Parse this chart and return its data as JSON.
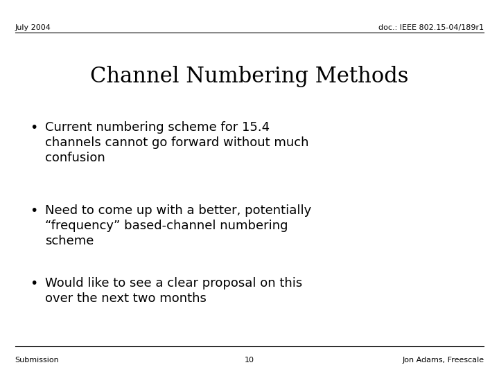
{
  "background_color": "#ffffff",
  "top_left_text": "July 2004",
  "top_right_text": "doc.: IEEE 802.15-04/189r1",
  "title": "Channel Numbering Methods",
  "bullets": [
    "Current numbering scheme for 15.4\nchannels cannot go forward without much\nconfusion",
    "Need to come up with a better, potentially\n“frequency” based-channel numbering\nscheme",
    "Would like to see a clear proposal on this\nover the next two months"
  ],
  "bottom_left_text": "Submission",
  "bottom_center_text": "10",
  "bottom_right_text": "Jon Adams, Freescale",
  "title_fontsize": 22,
  "header_fontsize": 8,
  "bullet_fontsize": 13,
  "footer_fontsize": 8,
  "text_color": "#000000",
  "line_color": "#000000"
}
